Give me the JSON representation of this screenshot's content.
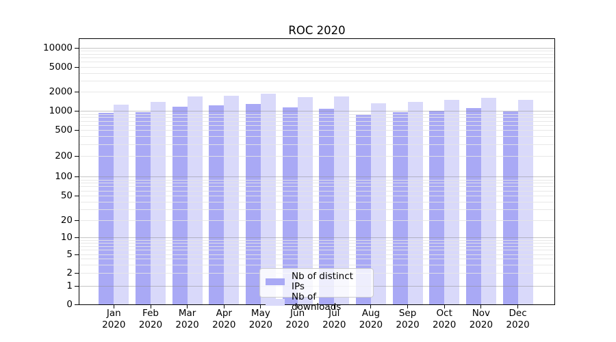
{
  "title": "ROC 2020",
  "chart_data": {
    "type": "bar",
    "title": "ROC 2020",
    "categories": [
      "Jan 2020",
      "Feb 2020",
      "Mar 2020",
      "Apr 2020",
      "May 2020",
      "Jun 2020",
      "Jul 2020",
      "Aug 2020",
      "Sep 2020",
      "Oct 2020",
      "Nov 2020",
      "Dec 2020"
    ],
    "series": [
      {
        "name": "Nb of distinct IPs",
        "color": "#a9a9f5",
        "values": [
          930,
          970,
          1170,
          1230,
          1290,
          1130,
          1090,
          870,
          950,
          1000,
          1120,
          980
        ]
      },
      {
        "name": "Nb of downloads",
        "color": "#d9d9fa",
        "values": [
          1270,
          1370,
          1680,
          1730,
          1870,
          1650,
          1700,
          1310,
          1400,
          1490,
          1600,
          1500
        ]
      }
    ],
    "xlabel": "",
    "ylabel": "",
    "yscale": "symlog",
    "y_ticks": [
      0,
      1,
      2,
      5,
      10,
      20,
      50,
      100,
      200,
      500,
      1000,
      2000,
      5000,
      10000
    ],
    "ylim": [
      0,
      14000
    ],
    "grid": "horizontal major and minor",
    "legend_position": "lower center inside plot"
  },
  "legend": {
    "items": [
      {
        "label": "Nb of distinct IPs",
        "color": "#a9a9f5"
      },
      {
        "label": "Nb of downloads",
        "color": "#d9d9fa"
      }
    ]
  },
  "colors": {
    "bar_distinct_ips": "#a9a9f5",
    "bar_downloads": "#d9d9fa",
    "grid_major": "#c6c6c6",
    "grid_minor": "#e9e9e9",
    "spine": "#000000",
    "background": "#ffffff",
    "text": "#000000"
  }
}
